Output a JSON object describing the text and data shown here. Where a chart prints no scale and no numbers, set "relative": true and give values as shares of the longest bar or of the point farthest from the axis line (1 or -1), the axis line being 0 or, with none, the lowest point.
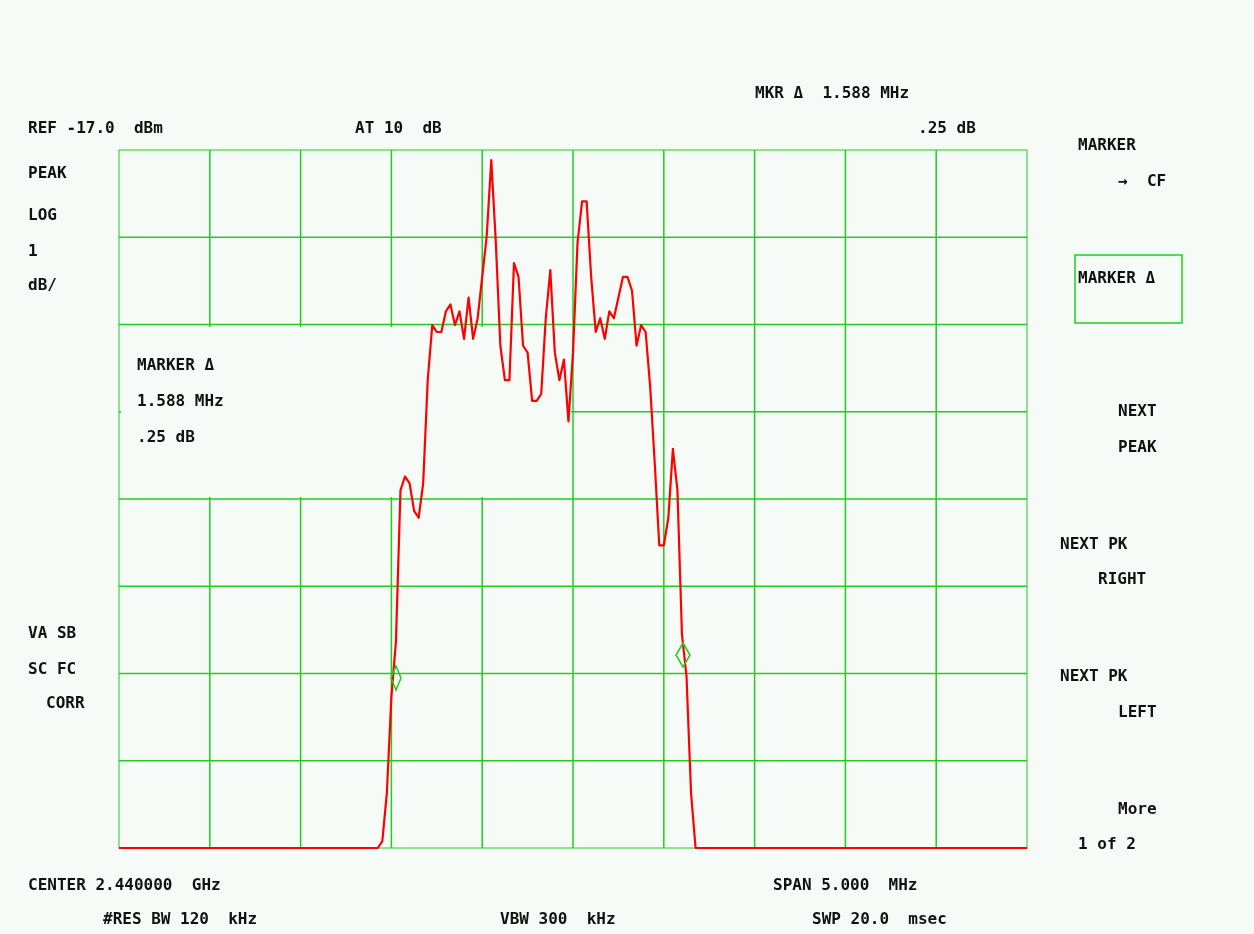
{
  "chart_data": {
    "type": "line",
    "relative": true,
    "grid": true,
    "categories": [
      null,
      null,
      null,
      null,
      null,
      null,
      null,
      null,
      null,
      null,
      null,
      null,
      null,
      null,
      null,
      null,
      null,
      null,
      null,
      null,
      null,
      null,
      null,
      null,
      null,
      null,
      null,
      null,
      null,
      null,
      null,
      null,
      null,
      null,
      null,
      null,
      null,
      null,
      null,
      null,
      null,
      null,
      null,
      null,
      null,
      null,
      null,
      null,
      null,
      null,
      null,
      null,
      null,
      null,
      null,
      null,
      null,
      null,
      null,
      null,
      null,
      null,
      null,
      null,
      null,
      null,
      null,
      null,
      null,
      null,
      null,
      null,
      null,
      null,
      null,
      null,
      null,
      null,
      null,
      null,
      null,
      null,
      null,
      null,
      null,
      null,
      null,
      null,
      null,
      null,
      null,
      null,
      null,
      null,
      null,
      null,
      null,
      null,
      null,
      null,
      null,
      null,
      null,
      null,
      null,
      null,
      null,
      null,
      null,
      null,
      null,
      null,
      null,
      null,
      null,
      null,
      null,
      null,
      null,
      null,
      null,
      null,
      null,
      null,
      null,
      null,
      null,
      null,
      null,
      null,
      null,
      null,
      null,
      null,
      null,
      null,
      null,
      null,
      null,
      null,
      null,
      null,
      null,
      null,
      null,
      null,
      null,
      null,
      null,
      null,
      null,
      null,
      null,
      null,
      null,
      null,
      null,
      null,
      null,
      null,
      null,
      null,
      null,
      null,
      null,
      null,
      null,
      null,
      null,
      null,
      null,
      null,
      null,
      null,
      null,
      null,
      null,
      null,
      null,
      null,
      null,
      null,
      null,
      null,
      null,
      null,
      null,
      null,
      null,
      null,
      null,
      null,
      null,
      null,
      null,
      null,
      null,
      null,
      null,
      null,
      null
    ],
    "series": [
      {
        "color": "#ff0000",
        "values": [
          0,
          0,
          0,
          0,
          0,
          0,
          0,
          0,
          0,
          0,
          0,
          0,
          0,
          0,
          0,
          0,
          0,
          0,
          0,
          0,
          0,
          0,
          0,
          0,
          0,
          0,
          0,
          0,
          0,
          0,
          0,
          0,
          0,
          0,
          0,
          0,
          0,
          0,
          0,
          0,
          0,
          0,
          0,
          0,
          0,
          0,
          0,
          0,
          0,
          0,
          0,
          0,
          0,
          0,
          0,
          0,
          0,
          0,
          0.01,
          0.08,
          0.22,
          0.3,
          0.52,
          0.54,
          0.53,
          0.49,
          0.48,
          0.53,
          0.68,
          0.76,
          0.75,
          0.75,
          0.78,
          0.79,
          0.76,
          0.78,
          0.74,
          0.8,
          0.74,
          0.77,
          0.83,
          0.89,
          1,
          0.88,
          0.73,
          0.68,
          0.68,
          0.85,
          0.83,
          0.73,
          0.72,
          0.65,
          0.65,
          0.66,
          0.77,
          0.84,
          0.72,
          0.68,
          0.71,
          0.62,
          0.72,
          0.88,
          0.94,
          0.94,
          0.83,
          0.75,
          0.77,
          0.74,
          0.78,
          0.77,
          0.8,
          0.83,
          0.83,
          0.81,
          0.73,
          0.76,
          0.75,
          0.67,
          0.56,
          0.44,
          0.44,
          0.48,
          0.58,
          0.52,
          0.31,
          0.25,
          0.08,
          0,
          0,
          0,
          0,
          0,
          0,
          0,
          0,
          0,
          0,
          0,
          0,
          0,
          0,
          0,
          0,
          0,
          0,
          0,
          0,
          0,
          0,
          0,
          0,
          0,
          0,
          0,
          0,
          0,
          0,
          0,
          0,
          0,
          0,
          0,
          0,
          0,
          0,
          0,
          0,
          0,
          0,
          0,
          0,
          0,
          0,
          0,
          0,
          0,
          0,
          0,
          0,
          0,
          0,
          0,
          0,
          0,
          0,
          0,
          0,
          0,
          0,
          0,
          0,
          0,
          0,
          0,
          0,
          0,
          0,
          0,
          0,
          0,
          0
        ]
      }
    ],
    "annotations": [
      "REF -17.0  dBm",
      "AT 10  dB",
      "MKR Δ  1.588 MHz",
      ".25 dB",
      "PEAK",
      "LOG",
      "1",
      "dB/",
      "MARKER Δ",
      "1.588 MHz",
      ".25 dB",
      "VA SB",
      "SC FC",
      "CORR",
      "MARKER",
      "→  CF",
      "MARKER Δ",
      "NEXT",
      "PEAK",
      "NEXT PK",
      "RIGHT",
      "NEXT PK",
      "LEFT",
      "More",
      "1 of 2",
      "CENTER 2.440000  GHz",
      "SPAN 5.000  MHz",
      "#RES BW 120  kHz",
      "VBW 300  kHz",
      "SWP 20.0  msec"
    ]
  }
}
